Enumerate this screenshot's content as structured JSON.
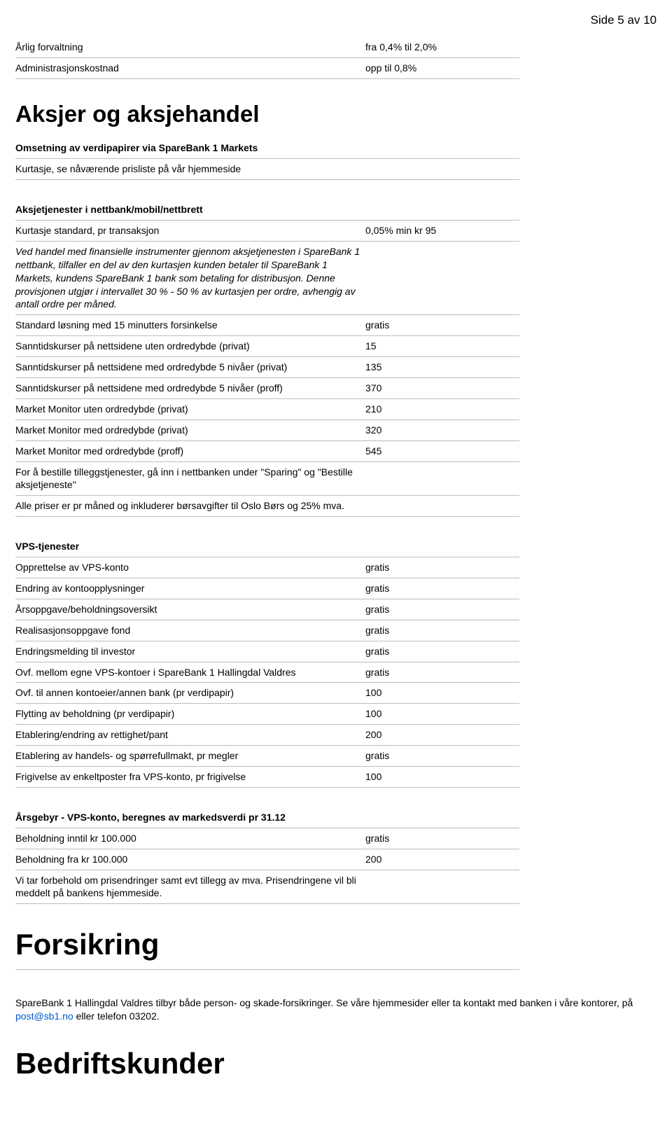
{
  "page_number": "Side 5 av 10",
  "forvaltning": {
    "rows": [
      {
        "label": "Årlig forvaltning",
        "value": "fra 0,4% til 2,0%"
      },
      {
        "label": "Administrasjonskostnad",
        "value": "opp til 0,8%"
      }
    ]
  },
  "aksjer": {
    "heading": "Aksjer og aksjehandel",
    "omsetning_header": "Omsetning av verdipapirer via SpareBank 1 Markets",
    "omsetning_row": {
      "label": "Kurtasje, se nåværende prisliste på vår hjemmeside",
      "value": ""
    },
    "aksjetj_header": "Aksjetjenester i nettbank/mobil/nettbrett",
    "rows": [
      {
        "label": "Kurtasje standard, pr transaksjon",
        "value": "0,05% min kr 95"
      },
      {
        "label": "Ved handel med finansielle instrumenter gjennom aksjetjenesten i SpareBank 1 nettbank, tilfaller en del av den kurtasjen kunden betaler til SpareBank 1 Markets, kundens SpareBank 1 bank som betaling for distribusjon. Denne provisjonen utgjør i intervallet 30 % - 50 % av kurtasjen per ordre, avhengig av antall ordre per måned.",
        "value": "",
        "italic": true
      },
      {
        "label": "Standard løsning med 15 minutters forsinkelse",
        "value": "gratis"
      },
      {
        "label": "Sanntidskurser på nettsidene uten ordredybde (privat)",
        "value": "15"
      },
      {
        "label": "Sanntidskurser på nettsidene med ordredybde 5 nivåer (privat)",
        "value": "135"
      },
      {
        "label": "Sanntidskurser på nettsidene med ordredybde 5 nivåer (proff)",
        "value": "370"
      },
      {
        "label": "Market Monitor uten ordredybde (privat)",
        "value": "210"
      },
      {
        "label": "Market Monitor med ordredybde (privat)",
        "value": "320"
      },
      {
        "label": "Market Monitor med ordredybde (proff)",
        "value": "545"
      },
      {
        "label": "For å bestille tilleggstjenester, gå inn i nettbanken under \"Sparing\" og \"Bestille aksjetjeneste\"",
        "value": ""
      },
      {
        "label": "Alle priser er pr måned og inkluderer børsavgifter til Oslo Børs og 25% mva.",
        "value": ""
      }
    ]
  },
  "vps": {
    "header": "VPS-tjenester",
    "rows": [
      {
        "label": "Opprettelse av VPS-konto",
        "value": "gratis"
      },
      {
        "label": "Endring av kontoopplysninger",
        "value": "gratis"
      },
      {
        "label": "Årsoppgave/beholdningsoversikt",
        "value": "gratis"
      },
      {
        "label": "Realisasjonsoppgave fond",
        "value": "gratis"
      },
      {
        "label": "Endringsmelding til investor",
        "value": "gratis"
      },
      {
        "label": "Ovf. mellom egne VPS-kontoer i SpareBank 1 Hallingdal Valdres",
        "value": "gratis"
      },
      {
        "label": "Ovf. til annen kontoeier/annen bank (pr verdipapir)",
        "value": "100"
      },
      {
        "label": "Flytting av beholdning (pr verdipapir)",
        "value": "100"
      },
      {
        "label": "Etablering/endring av rettighet/pant",
        "value": "200"
      },
      {
        "label": "Etablering av handels- og spørrefullmakt, pr megler",
        "value": "gratis"
      },
      {
        "label": "Frigivelse av enkeltposter fra VPS-konto, pr frigivelse",
        "value": "100"
      }
    ]
  },
  "arsgebyr": {
    "header": "Årsgebyr - VPS-konto, beregnes av markedsverdi pr 31.12",
    "rows": [
      {
        "label": "Beholdning inntil kr 100.000",
        "value": "gratis"
      },
      {
        "label": "Beholdning fra kr 100.000",
        "value": "200"
      },
      {
        "label": "Vi tar forbehold om prisendringer samt evt tillegg av mva. Prisendringene vil bli meddelt på bankens hjemmeside.",
        "value": ""
      }
    ]
  },
  "forsikring": {
    "heading": "Forsikring",
    "text_before": "SpareBank 1 Hallingdal Valdres tilbyr både person- og skade-forsikringer. Se våre hjemmesider eller ta kontakt med banken i våre kontorer, på ",
    "link": "post@sb1.no",
    "text_after": " eller telefon 03202."
  },
  "bedrift": {
    "heading": "Bedriftskunder"
  }
}
